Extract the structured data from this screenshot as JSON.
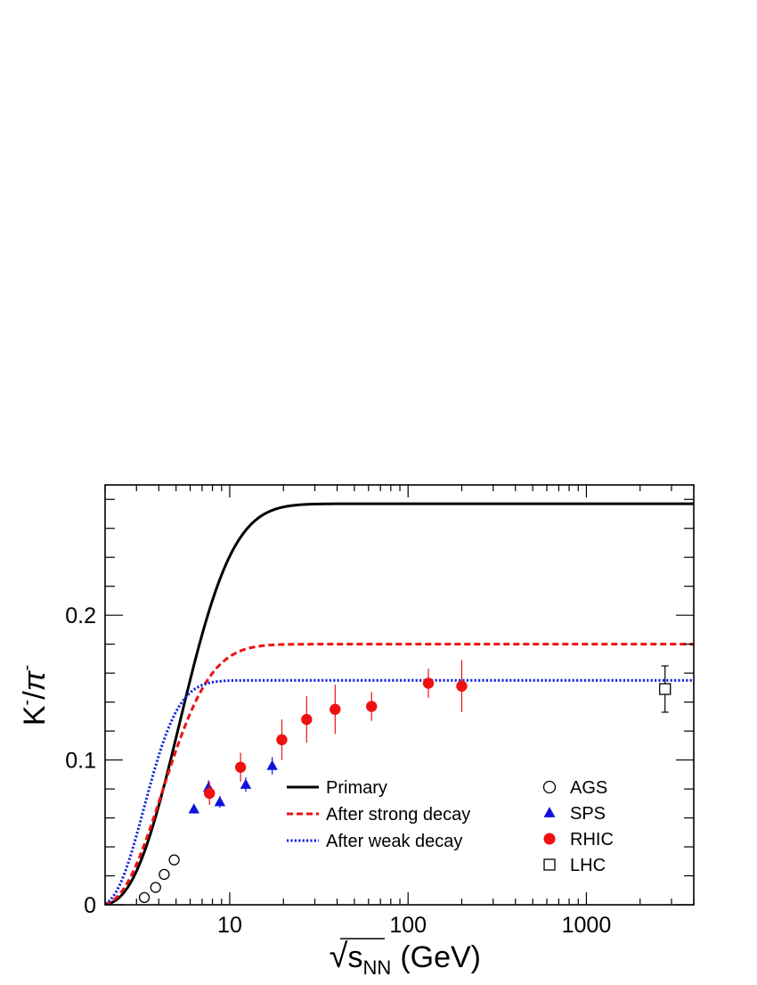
{
  "chart_data": {
    "type": "scatter",
    "xlabel": {
      "root": "√",
      "main": "s",
      "sub": "NN",
      "unit": "(GeV)"
    },
    "ylabel": {
      "k": "K",
      "sup1": "-",
      "slash": "/",
      "pi": "π",
      "sup2": "-"
    },
    "xscale": "log",
    "xlim": [
      2,
      4000
    ],
    "ylim": [
      0,
      0.29
    ],
    "x_major_ticks": [
      {
        "value": 10,
        "label": "10"
      },
      {
        "value": 100,
        "label": "100"
      },
      {
        "value": 1000,
        "label": "1000"
      }
    ],
    "y_major_ticks": [
      {
        "value": 0,
        "label": "0"
      },
      {
        "value": 0.1,
        "label": "0.1"
      },
      {
        "value": 0.2,
        "label": "0.2"
      }
    ],
    "y_minor_step": 0.02,
    "grid": false,
    "legend_placement": "bottom-right",
    "curves": [
      {
        "name": "Primary",
        "color": "#000000",
        "style": "solid",
        "plateau": 0.277,
        "k": 0.55,
        "n": 2.5,
        "x0": 3.1
      },
      {
        "name": "After strong decay",
        "color": "#ee1111",
        "style": "dashed",
        "plateau": 0.18,
        "k": 0.45,
        "n": 2.3,
        "x0": 3.1
      },
      {
        "name": "After weak decay",
        "color": "#1122dd",
        "style": "dotted",
        "plateau": 0.155,
        "k": 0.32,
        "n": 2.3,
        "x0": 3.1
      }
    ],
    "series": [
      {
        "name": "AGS",
        "marker": "open-circle",
        "color": "#000000",
        "points": [
          {
            "x": 3.32,
            "y": 0.005,
            "err": 0
          },
          {
            "x": 3.84,
            "y": 0.012,
            "err": 0
          },
          {
            "x": 4.29,
            "y": 0.021,
            "err": 0
          },
          {
            "x": 4.88,
            "y": 0.031,
            "err": 0
          }
        ]
      },
      {
        "name": "SPS",
        "marker": "filled-triangle",
        "color": "#1111dd",
        "points": [
          {
            "x": 6.3,
            "y": 0.066,
            "err": 0.003
          },
          {
            "x": 7.6,
            "y": 0.081,
            "err": 0.005
          },
          {
            "x": 8.8,
            "y": 0.071,
            "err": 0.004
          },
          {
            "x": 12.3,
            "y": 0.083,
            "err": 0.005
          },
          {
            "x": 17.3,
            "y": 0.096,
            "err": 0.006
          }
        ]
      },
      {
        "name": "RHIC",
        "marker": "filled-circle",
        "color": "#ee1111",
        "points": [
          {
            "x": 7.7,
            "y": 0.077,
            "err": 0.008
          },
          {
            "x": 11.5,
            "y": 0.095,
            "err": 0.01
          },
          {
            "x": 19.6,
            "y": 0.114,
            "err": 0.014
          },
          {
            "x": 27,
            "y": 0.128,
            "err": 0.016
          },
          {
            "x": 39,
            "y": 0.135,
            "err": 0.017
          },
          {
            "x": 62.4,
            "y": 0.137,
            "err": 0.01
          },
          {
            "x": 130,
            "y": 0.153,
            "err": 0.01
          },
          {
            "x": 200,
            "y": 0.151,
            "err": 0.018
          }
        ]
      },
      {
        "name": "LHC",
        "marker": "open-square",
        "color": "#000000",
        "points": [
          {
            "x": 2760,
            "y": 0.149,
            "err": 0.016
          }
        ]
      }
    ]
  }
}
